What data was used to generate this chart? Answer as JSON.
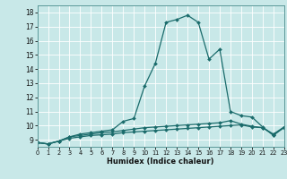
{
  "xlabel": "Humidex (Indice chaleur)",
  "bg_color": "#c8e8e8",
  "grid_color": "#ffffff",
  "line_color": "#1a6b6b",
  "xlim": [
    0,
    23
  ],
  "ylim": [
    8.5,
    18.5
  ],
  "yticks": [
    9,
    10,
    11,
    12,
    13,
    14,
    15,
    16,
    17,
    18
  ],
  "xticks": [
    0,
    1,
    2,
    3,
    4,
    5,
    6,
    7,
    8,
    9,
    10,
    11,
    12,
    13,
    14,
    15,
    16,
    17,
    18,
    19,
    20,
    21,
    22,
    23
  ],
  "line_main_x": [
    0,
    1,
    2,
    3,
    4,
    5,
    6,
    7,
    8,
    9,
    10,
    11,
    12,
    13,
    14,
    15,
    16,
    17,
    18,
    19,
    20,
    21,
    22,
    23
  ],
  "line_main_y": [
    8.8,
    8.7,
    8.9,
    9.2,
    9.4,
    9.5,
    9.6,
    9.7,
    10.3,
    10.5,
    12.8,
    14.4,
    17.3,
    17.5,
    17.8,
    17.3,
    14.7,
    15.4,
    11.0,
    10.7,
    10.6,
    9.9,
    9.3,
    9.9
  ],
  "line_mid_x": [
    0,
    1,
    2,
    3,
    4,
    5,
    6,
    7,
    8,
    9,
    10,
    11,
    12,
    13,
    14,
    15,
    16,
    17,
    18,
    19,
    20,
    21,
    22,
    23
  ],
  "line_mid_y": [
    8.8,
    8.7,
    8.9,
    9.2,
    9.3,
    9.4,
    9.5,
    9.55,
    9.65,
    9.75,
    9.85,
    9.9,
    9.95,
    10.0,
    10.05,
    10.1,
    10.15,
    10.2,
    10.35,
    10.1,
    9.95,
    9.85,
    9.35,
    9.85
  ],
  "line_low_x": [
    0,
    1,
    2,
    3,
    4,
    5,
    6,
    7,
    8,
    9,
    10,
    11,
    12,
    13,
    14,
    15,
    16,
    17,
    18,
    19,
    20,
    21,
    22,
    23
  ],
  "line_low_y": [
    8.8,
    8.7,
    8.9,
    9.1,
    9.2,
    9.3,
    9.35,
    9.4,
    9.5,
    9.55,
    9.6,
    9.65,
    9.7,
    9.75,
    9.8,
    9.85,
    9.9,
    9.95,
    10.0,
    10.05,
    9.9,
    9.85,
    9.4,
    9.9
  ],
  "tick_fontsize": 5.5,
  "xlabel_fontsize": 6.0,
  "xlabel_fontweight": "bold"
}
